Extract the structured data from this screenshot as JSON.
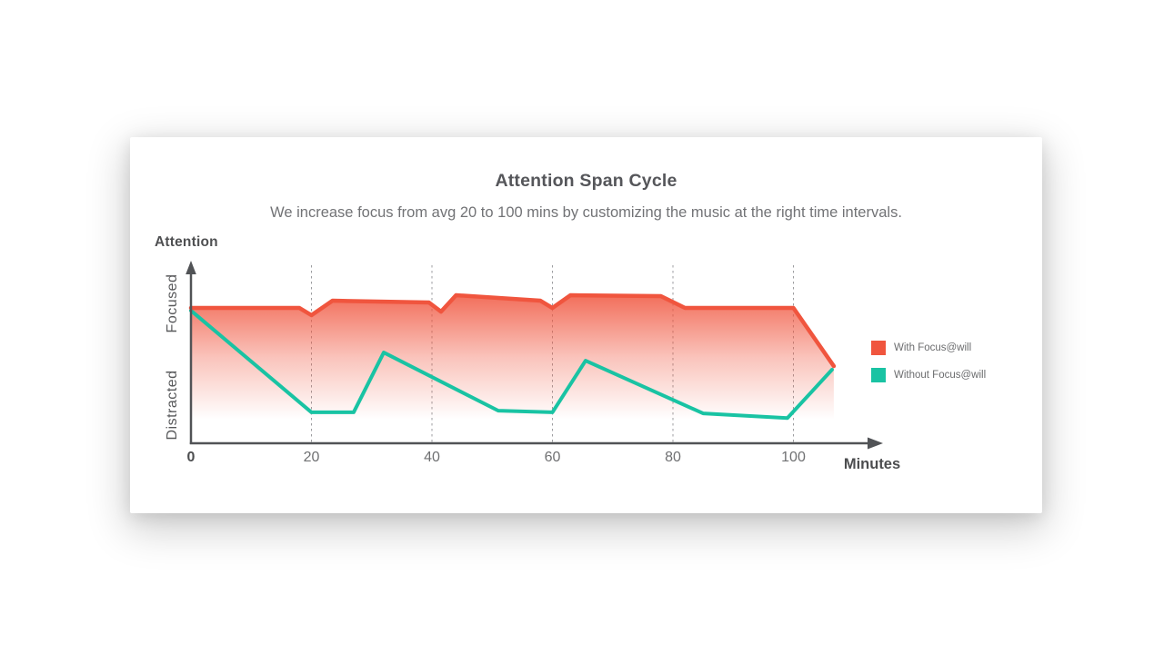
{
  "card": {
    "title": "Attention Span Cycle",
    "subtitle": "We increase focus from avg 20 to 100 mins by customizing the music at the right time intervals."
  },
  "chart_data": {
    "type": "area",
    "title": "Attention Span Cycle",
    "subtitle": "We increase focus from avg 20 to 100 mins by customizing the music at the right time intervals.",
    "xlabel": "Minutes",
    "ylabel": "Attention",
    "y_axis_labels": {
      "high": "Focused",
      "low": "Distracted"
    },
    "x_ticks": [
      0,
      20,
      40,
      60,
      80,
      100
    ],
    "gridlines_at": [
      20,
      40,
      60,
      80,
      100
    ],
    "xlim": [
      0,
      115
    ],
    "ylim": [
      0,
      120
    ],
    "y_units": "qualitative attention level (0 = axis baseline, 100 = max focused line height)",
    "grid": "dashed vertical lines at each 20-minute tick",
    "legend_position": "right",
    "series": [
      {
        "name": "With Focus@will",
        "color": "#f0553e",
        "fill_gradient": true,
        "points": [
          [
            0,
            91.4
          ],
          [
            18,
            91.4
          ],
          [
            20,
            86.5
          ],
          [
            23.5,
            96.3
          ],
          [
            39.5,
            95.1
          ],
          [
            41.5,
            88.9
          ],
          [
            44,
            100
          ],
          [
            58,
            96.3
          ],
          [
            60,
            91.4
          ],
          [
            63,
            100
          ],
          [
            78,
            99.4
          ],
          [
            82,
            91.4
          ],
          [
            100,
            91.4
          ],
          [
            106.7,
            52.1
          ]
        ]
      },
      {
        "name": "Without Focus@will",
        "color": "#19c3a3",
        "fill_gradient": false,
        "points": [
          [
            0,
            89.6
          ],
          [
            20,
            20.9
          ],
          [
            27,
            20.9
          ],
          [
            32,
            61.3
          ],
          [
            51,
            22
          ],
          [
            60,
            20.9
          ],
          [
            65.5,
            55.8
          ],
          [
            85,
            20.2
          ],
          [
            99,
            17
          ],
          [
            106.4,
            49.7
          ]
        ]
      }
    ]
  }
}
